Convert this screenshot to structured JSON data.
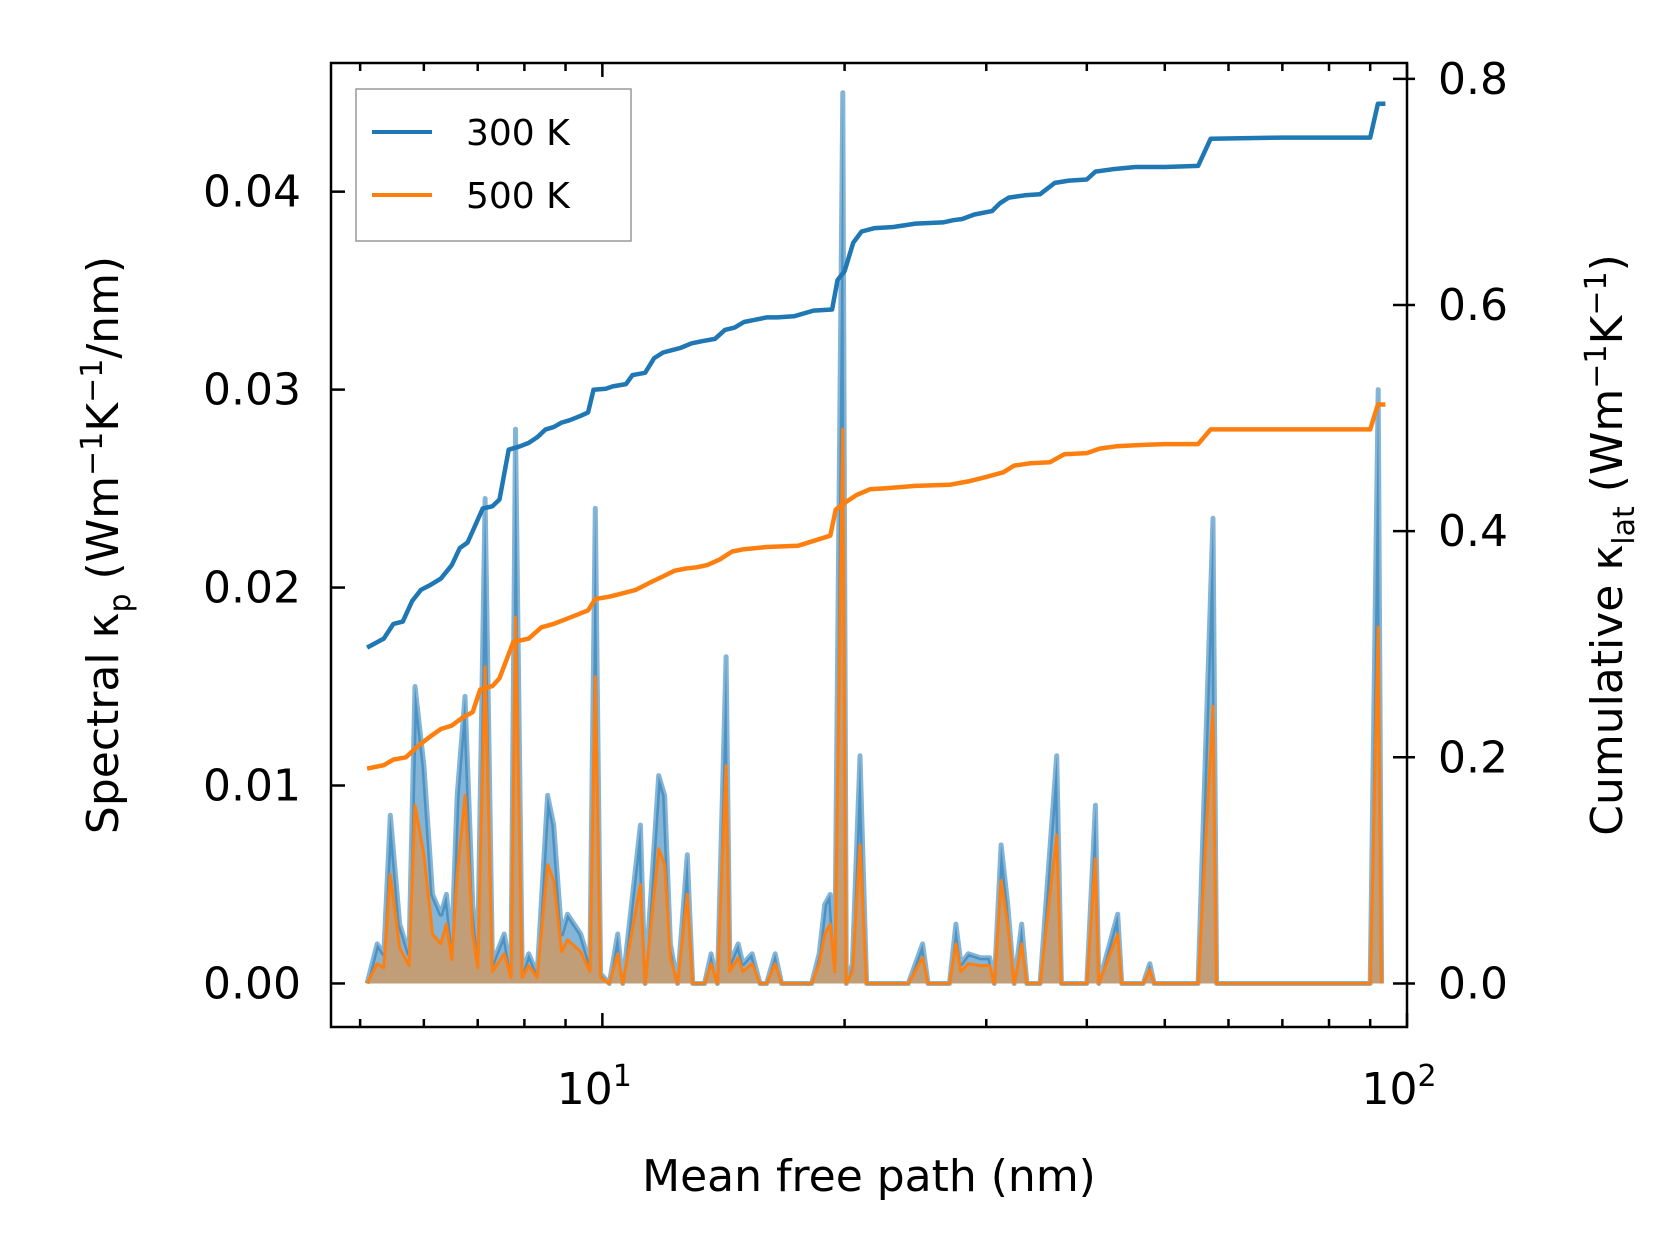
{
  "chart_data": {
    "type": "line",
    "xscale": "log",
    "xlabel": "Mean free path (nm)",
    "ylabel_left": {
      "main": "Spectral κ",
      "sub": "p",
      "unit_pre": " (Wm",
      "unit_sup1": "−1",
      "unit_mid": "K",
      "unit_sup2": "−1",
      "unit_post": "/nm)"
    },
    "ylabel_right": {
      "main": "Cumulative κ",
      "sub": "lat",
      "unit_pre": " (Wm",
      "unit_sup1": "−1",
      "unit_mid": "K",
      "unit_sup2": "−1",
      "unit_post": ")"
    },
    "xlim": [
      4.6,
      100
    ],
    "ylim_left": [
      -0.0022,
      0.0465
    ],
    "ylim_right": [
      -0.0385,
      0.814
    ],
    "x_ticks": [
      {
        "value": 10,
        "base": "10",
        "exp": "1"
      },
      {
        "value": 100,
        "base": "10",
        "exp": "2"
      }
    ],
    "y_left_ticks": [
      {
        "value": 0.0,
        "label": "0.00"
      },
      {
        "value": 0.01,
        "label": "0.01"
      },
      {
        "value": 0.02,
        "label": "0.02"
      },
      {
        "value": 0.03,
        "label": "0.03"
      },
      {
        "value": 0.04,
        "label": "0.04"
      }
    ],
    "y_right_ticks": [
      {
        "value": 0.0,
        "label": "0.0"
      },
      {
        "value": 0.2,
        "label": "0.2"
      },
      {
        "value": 0.4,
        "label": "0.4"
      },
      {
        "value": 0.6,
        "label": "0.6"
      },
      {
        "value": 0.8,
        "label": "0.8"
      }
    ],
    "legend": {
      "position": "top-left",
      "entries": [
        {
          "label": "300 K",
          "color": "#1f77b4"
        },
        {
          "label": "500 K",
          "color": "#ff7f0e"
        }
      ]
    },
    "colors": {
      "k300": "#1f77b4",
      "k500": "#ff7f0e",
      "fill500": "#c89a6e"
    },
    "spectral": {
      "k300": [
        [
          5.1,
          0
        ],
        [
          5.25,
          0.002
        ],
        [
          5.35,
          0.0015
        ],
        [
          5.45,
          0.0085
        ],
        [
          5.6,
          0.003
        ],
        [
          5.75,
          0.0015
        ],
        [
          5.85,
          0.015
        ],
        [
          6.0,
          0.011
        ],
        [
          6.15,
          0.0045
        ],
        [
          6.3,
          0.0035
        ],
        [
          6.4,
          0.0045
        ],
        [
          6.5,
          0.002
        ],
        [
          6.6,
          0.0095
        ],
        [
          6.75,
          0.0145
        ],
        [
          6.9,
          0.004
        ],
        [
          7.0,
          0.0015
        ],
        [
          7.15,
          0.0245
        ],
        [
          7.3,
          0.001
        ],
        [
          7.55,
          0.0025
        ],
        [
          7.7,
          0.0005
        ],
        [
          7.8,
          0.028
        ],
        [
          7.95,
          0.0005
        ],
        [
          8.1,
          0.0015
        ],
        [
          8.3,
          0.0005
        ],
        [
          8.55,
          0.0095
        ],
        [
          8.7,
          0.008
        ],
        [
          8.9,
          0.0025
        ],
        [
          9.05,
          0.0035
        ],
        [
          9.4,
          0.0025
        ],
        [
          9.65,
          0.001
        ],
        [
          9.8,
          0.024
        ],
        [
          9.95,
          0.0005
        ],
        [
          10.2,
          0
        ],
        [
          10.45,
          0.0025
        ],
        [
          10.6,
          0
        ],
        [
          11.15,
          0.008
        ],
        [
          11.3,
          0
        ],
        [
          11.75,
          0.0105
        ],
        [
          11.95,
          0.0095
        ],
        [
          12.15,
          0.002
        ],
        [
          12.4,
          0
        ],
        [
          12.75,
          0.0065
        ],
        [
          12.95,
          0
        ],
        [
          13.4,
          0
        ],
        [
          13.65,
          0.0015
        ],
        [
          13.9,
          0
        ],
        [
          14.25,
          0.0165
        ],
        [
          14.4,
          0.001
        ],
        [
          14.75,
          0.002
        ],
        [
          14.95,
          0.001
        ],
        [
          15.35,
          0.0015
        ],
        [
          15.7,
          0
        ],
        [
          16.0,
          0
        ],
        [
          16.4,
          0.0015
        ],
        [
          16.7,
          0
        ],
        [
          17.4,
          0
        ],
        [
          18.2,
          0
        ],
        [
          18.6,
          0.0015
        ],
        [
          18.9,
          0.004
        ],
        [
          19.2,
          0.0045
        ],
        [
          19.45,
          0.001
        ],
        [
          19.9,
          0.045
        ],
        [
          20.1,
          0
        ],
        [
          20.45,
          0.001
        ],
        [
          20.9,
          0.0115
        ],
        [
          21.3,
          0
        ],
        [
          22.5,
          0
        ],
        [
          23.2,
          0
        ],
        [
          24.0,
          0
        ],
        [
          25.0,
          0.002
        ],
        [
          25.4,
          0
        ],
        [
          27.0,
          0
        ],
        [
          27.5,
          0.003
        ],
        [
          27.9,
          0.001
        ],
        [
          28.5,
          0.0015
        ],
        [
          29.5,
          0.0013
        ],
        [
          30.3,
          0.0013
        ],
        [
          30.7,
          0
        ],
        [
          31.3,
          0.007
        ],
        [
          31.9,
          0.004
        ],
        [
          32.5,
          0.0
        ],
        [
          33.2,
          0.003
        ],
        [
          33.7,
          0.0
        ],
        [
          35.0,
          0
        ],
        [
          36.7,
          0.0115
        ],
        [
          37.2,
          0
        ],
        [
          40.0,
          0
        ],
        [
          41.0,
          0.009
        ],
        [
          41.4,
          0
        ],
        [
          43.7,
          0.0035
        ],
        [
          44.2,
          0
        ],
        [
          47.0,
          0
        ],
        [
          47.9,
          0.001
        ],
        [
          48.5,
          0
        ],
        [
          55.0,
          0
        ],
        [
          57.4,
          0.0235
        ],
        [
          58.0,
          0
        ],
        [
          70.0,
          0
        ],
        [
          90.0,
          0
        ],
        [
          92.1,
          0.03
        ],
        [
          93.0,
          0
        ]
      ],
      "k500": [
        [
          5.1,
          0
        ],
        [
          5.25,
          0.001
        ],
        [
          5.35,
          0.0008
        ],
        [
          5.45,
          0.0055
        ],
        [
          5.6,
          0.0018
        ],
        [
          5.75,
          0.0009
        ],
        [
          5.85,
          0.009
        ],
        [
          6.0,
          0.0065
        ],
        [
          6.15,
          0.0025
        ],
        [
          6.3,
          0.002
        ],
        [
          6.4,
          0.003
        ],
        [
          6.5,
          0.0012
        ],
        [
          6.6,
          0.0055
        ],
        [
          6.75,
          0.0095
        ],
        [
          6.9,
          0.0025
        ],
        [
          7.0,
          0.0008
        ],
        [
          7.15,
          0.016
        ],
        [
          7.3,
          0.0006
        ],
        [
          7.55,
          0.0015
        ],
        [
          7.7,
          0.0003
        ],
        [
          7.8,
          0.0185
        ],
        [
          7.95,
          0.0003
        ],
        [
          8.1,
          0.0009
        ],
        [
          8.3,
          0.0003
        ],
        [
          8.55,
          0.006
        ],
        [
          8.7,
          0.0052
        ],
        [
          8.9,
          0.0016
        ],
        [
          9.05,
          0.0022
        ],
        [
          9.4,
          0.0016
        ],
        [
          9.65,
          0.0006
        ],
        [
          9.8,
          0.0155
        ],
        [
          9.95,
          0.0003
        ],
        [
          10.2,
          0
        ],
        [
          10.45,
          0.0015
        ],
        [
          10.6,
          0
        ],
        [
          11.15,
          0.005
        ],
        [
          11.3,
          0
        ],
        [
          11.75,
          0.0068
        ],
        [
          11.95,
          0.006
        ],
        [
          12.15,
          0.0013
        ],
        [
          12.4,
          0
        ],
        [
          12.75,
          0.0045
        ],
        [
          12.95,
          0
        ],
        [
          13.4,
          0
        ],
        [
          13.65,
          0.001
        ],
        [
          13.9,
          0
        ],
        [
          14.25,
          0.011
        ],
        [
          14.4,
          0.0006
        ],
        [
          14.75,
          0.0013
        ],
        [
          14.95,
          0.0006
        ],
        [
          15.35,
          0.001
        ],
        [
          15.7,
          0
        ],
        [
          16.0,
          0
        ],
        [
          16.4,
          0.001
        ],
        [
          16.7,
          0
        ],
        [
          17.4,
          0
        ],
        [
          18.2,
          0
        ],
        [
          18.6,
          0.001
        ],
        [
          18.9,
          0.0025
        ],
        [
          19.2,
          0.003
        ],
        [
          19.45,
          0.0006
        ],
        [
          19.9,
          0.028
        ],
        [
          20.1,
          0
        ],
        [
          20.45,
          0.0006
        ],
        [
          20.9,
          0.007
        ],
        [
          21.3,
          0
        ],
        [
          22.5,
          0
        ],
        [
          23.2,
          0
        ],
        [
          24.0,
          0
        ],
        [
          25.0,
          0.0013
        ],
        [
          25.4,
          0
        ],
        [
          27.0,
          0
        ],
        [
          27.5,
          0.002
        ],
        [
          27.9,
          0.0006
        ],
        [
          28.5,
          0.001
        ],
        [
          29.5,
          0.0009
        ],
        [
          30.3,
          0.0009
        ],
        [
          30.7,
          0
        ],
        [
          31.3,
          0.0052
        ],
        [
          31.9,
          0.003
        ],
        [
          32.5,
          0.0
        ],
        [
          33.2,
          0.002
        ],
        [
          33.7,
          0.0
        ],
        [
          35.0,
          0
        ],
        [
          36.7,
          0.0075
        ],
        [
          37.2,
          0
        ],
        [
          40.0,
          0
        ],
        [
          41.0,
          0.0063
        ],
        [
          41.4,
          0
        ],
        [
          43.7,
          0.0025
        ],
        [
          44.2,
          0
        ],
        [
          47.0,
          0
        ],
        [
          47.9,
          0.0007
        ],
        [
          48.5,
          0
        ],
        [
          55.0,
          0
        ],
        [
          57.4,
          0.014
        ],
        [
          58.0,
          0
        ],
        [
          70.0,
          0
        ],
        [
          90.0,
          0
        ],
        [
          92.1,
          0.018
        ],
        [
          93.0,
          0
        ]
      ]
    },
    "cumulative": {
      "k300": [
        [
          5.1,
          0.297
        ],
        [
          5.35,
          0.305
        ],
        [
          5.5,
          0.318
        ],
        [
          5.65,
          0.32
        ],
        [
          5.8,
          0.338
        ],
        [
          5.95,
          0.348
        ],
        [
          6.1,
          0.352
        ],
        [
          6.3,
          0.358
        ],
        [
          6.5,
          0.37
        ],
        [
          6.65,
          0.385
        ],
        [
          6.8,
          0.39
        ],
        [
          6.95,
          0.405
        ],
        [
          7.1,
          0.42
        ],
        [
          7.3,
          0.422
        ],
        [
          7.45,
          0.428
        ],
        [
          7.65,
          0.472
        ],
        [
          7.9,
          0.475
        ],
        [
          8.1,
          0.478
        ],
        [
          8.3,
          0.483
        ],
        [
          8.5,
          0.49
        ],
        [
          8.7,
          0.492
        ],
        [
          8.9,
          0.496
        ],
        [
          9.1,
          0.498
        ],
        [
          9.4,
          0.502
        ],
        [
          9.6,
          0.505
        ],
        [
          9.75,
          0.525
        ],
        [
          10.1,
          0.526
        ],
        [
          10.3,
          0.528
        ],
        [
          10.7,
          0.53
        ],
        [
          10.9,
          0.538
        ],
        [
          11.3,
          0.54
        ],
        [
          11.6,
          0.553
        ],
        [
          11.9,
          0.558
        ],
        [
          12.2,
          0.56
        ],
        [
          12.5,
          0.562
        ],
        [
          12.9,
          0.566
        ],
        [
          13.3,
          0.568
        ],
        [
          13.8,
          0.57
        ],
        [
          14.2,
          0.578
        ],
        [
          14.6,
          0.58
        ],
        [
          15.0,
          0.585
        ],
        [
          15.5,
          0.587
        ],
        [
          16.0,
          0.589
        ],
        [
          16.5,
          0.589
        ],
        [
          17.3,
          0.59
        ],
        [
          18.3,
          0.595
        ],
        [
          19.3,
          0.596
        ],
        [
          19.6,
          0.622
        ],
        [
          20.0,
          0.63
        ],
        [
          20.5,
          0.655
        ],
        [
          21.0,
          0.665
        ],
        [
          21.8,
          0.668
        ],
        [
          23.0,
          0.669
        ],
        [
          24.5,
          0.672
        ],
        [
          26.5,
          0.673
        ],
        [
          27.3,
          0.675
        ],
        [
          28.0,
          0.676
        ],
        [
          29.0,
          0.68
        ],
        [
          30.5,
          0.683
        ],
        [
          31.2,
          0.69
        ],
        [
          32.0,
          0.695
        ],
        [
          33.5,
          0.697
        ],
        [
          35.0,
          0.698
        ],
        [
          36.5,
          0.708
        ],
        [
          38.0,
          0.71
        ],
        [
          40.0,
          0.711
        ],
        [
          41.0,
          0.718
        ],
        [
          43.0,
          0.72
        ],
        [
          46.0,
          0.722
        ],
        [
          50.0,
          0.722
        ],
        [
          55.0,
          0.723
        ],
        [
          57.0,
          0.747
        ],
        [
          70.0,
          0.748
        ],
        [
          85.0,
          0.748
        ],
        [
          90.0,
          0.748
        ],
        [
          92.0,
          0.778
        ],
        [
          94.0,
          0.778
        ]
      ],
      "k500": [
        [
          5.1,
          0.19
        ],
        [
          5.35,
          0.193
        ],
        [
          5.5,
          0.198
        ],
        [
          5.7,
          0.2
        ],
        [
          5.9,
          0.21
        ],
        [
          6.1,
          0.218
        ],
        [
          6.3,
          0.225
        ],
        [
          6.5,
          0.228
        ],
        [
          6.7,
          0.235
        ],
        [
          6.9,
          0.24
        ],
        [
          7.05,
          0.26
        ],
        [
          7.3,
          0.263
        ],
        [
          7.45,
          0.27
        ],
        [
          7.75,
          0.302
        ],
        [
          8.1,
          0.305
        ],
        [
          8.4,
          0.315
        ],
        [
          8.7,
          0.318
        ],
        [
          9.0,
          0.322
        ],
        [
          9.3,
          0.326
        ],
        [
          9.6,
          0.33
        ],
        [
          9.8,
          0.34
        ],
        [
          10.2,
          0.342
        ],
        [
          10.6,
          0.345
        ],
        [
          11.0,
          0.348
        ],
        [
          11.5,
          0.355
        ],
        [
          11.9,
          0.36
        ],
        [
          12.3,
          0.365
        ],
        [
          12.7,
          0.367
        ],
        [
          13.1,
          0.368
        ],
        [
          13.5,
          0.37
        ],
        [
          14.0,
          0.375
        ],
        [
          14.5,
          0.382
        ],
        [
          15.0,
          0.384
        ],
        [
          15.5,
          0.385
        ],
        [
          16.0,
          0.386
        ],
        [
          17.5,
          0.387
        ],
        [
          19.2,
          0.396
        ],
        [
          19.5,
          0.419
        ],
        [
          20.0,
          0.425
        ],
        [
          20.7,
          0.432
        ],
        [
          21.5,
          0.437
        ],
        [
          22.5,
          0.438
        ],
        [
          24.5,
          0.44
        ],
        [
          27.0,
          0.441
        ],
        [
          28.5,
          0.444
        ],
        [
          30.0,
          0.448
        ],
        [
          31.5,
          0.452
        ],
        [
          32.5,
          0.458
        ],
        [
          34.0,
          0.46
        ],
        [
          36.0,
          0.461
        ],
        [
          37.5,
          0.468
        ],
        [
          40.0,
          0.469
        ],
        [
          41.5,
          0.473
        ],
        [
          43.5,
          0.475
        ],
        [
          46.0,
          0.476
        ],
        [
          50.0,
          0.477
        ],
        [
          55.0,
          0.477
        ],
        [
          57.0,
          0.49
        ],
        [
          70.0,
          0.49
        ],
        [
          85.0,
          0.49
        ],
        [
          90.0,
          0.49
        ],
        [
          92.0,
          0.512
        ],
        [
          94.0,
          0.512
        ]
      ]
    }
  }
}
